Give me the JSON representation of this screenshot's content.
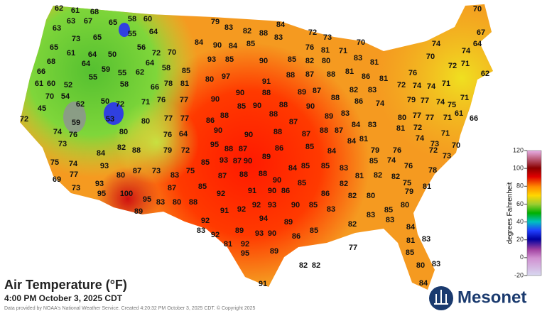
{
  "title": "Air Temperature (°F)",
  "subtitle": "4:00 PM October 3, 2025 CDT",
  "credit": "Data provided by NOAA's National Weather Service. Created 4:20:32 PM October 3, 2025 CDT. © Copyright 2025",
  "logo": "Mesonet",
  "colorbar": {
    "label": "degrees Fahrenheit",
    "lim": [
      -20,
      120
    ],
    "ticks": [
      120,
      100,
      80,
      60,
      40,
      20,
      0,
      -20
    ]
  },
  "stations": [
    62,
    61,
    68,
    63,
    67,
    63,
    65,
    58,
    60,
    55,
    64,
    73,
    65,
    61,
    50,
    64,
    56,
    72,
    70,
    68,
    65,
    64,
    59,
    55,
    62,
    64,
    58,
    66,
    52,
    60,
    61,
    55,
    58,
    66,
    78,
    81,
    54,
    70,
    62,
    50,
    72,
    71,
    76,
    77,
    45,
    59,
    53,
    72,
    74,
    76,
    73,
    80,
    80,
    77,
    77,
    76,
    64,
    84,
    82,
    88,
    79,
    72,
    75,
    74,
    93,
    77,
    69,
    80,
    87,
    73,
    83,
    75,
    73,
    95,
    93,
    100,
    95,
    83,
    80,
    88,
    89,
    87,
    79,
    83,
    82,
    88,
    83,
    84,
    72,
    73,
    76,
    81,
    70,
    84,
    90,
    84,
    85,
    85,
    82,
    80,
    71,
    83,
    81,
    74,
    70,
    67,
    64,
    74,
    93,
    85,
    90,
    85,
    80,
    97,
    91,
    88,
    87,
    88,
    81,
    86,
    81,
    76,
    72,
    74,
    74,
    71,
    71,
    72,
    62,
    70,
    90,
    90,
    88,
    89,
    87,
    88,
    82,
    83,
    79,
    77,
    74,
    75,
    71,
    86,
    88,
    85,
    90,
    88,
    88,
    90,
    89,
    83,
    86,
    74,
    80,
    77,
    77,
    71,
    66,
    61,
    81,
    72,
    71,
    90,
    90,
    88,
    87,
    87,
    88,
    87,
    84,
    83,
    84,
    81,
    79,
    76,
    74,
    73,
    72,
    70,
    73,
    95,
    88,
    87,
    86,
    85,
    84,
    83,
    85,
    84,
    85,
    85,
    93,
    87,
    89,
    90,
    85,
    74,
    76,
    78,
    87,
    88,
    88,
    90,
    85,
    82,
    81,
    82,
    82,
    79,
    75,
    81,
    85,
    92,
    91,
    90,
    86,
    86,
    82,
    80,
    85,
    80,
    92,
    91,
    92,
    92,
    93,
    90,
    85,
    83,
    82,
    83,
    83,
    84,
    94,
    89,
    83,
    81,
    85,
    80,
    83,
    84,
    77,
    83,
    92,
    89,
    93,
    90,
    85,
    86,
    81,
    92,
    95,
    89,
    91,
    82,
    82
  ]
}
